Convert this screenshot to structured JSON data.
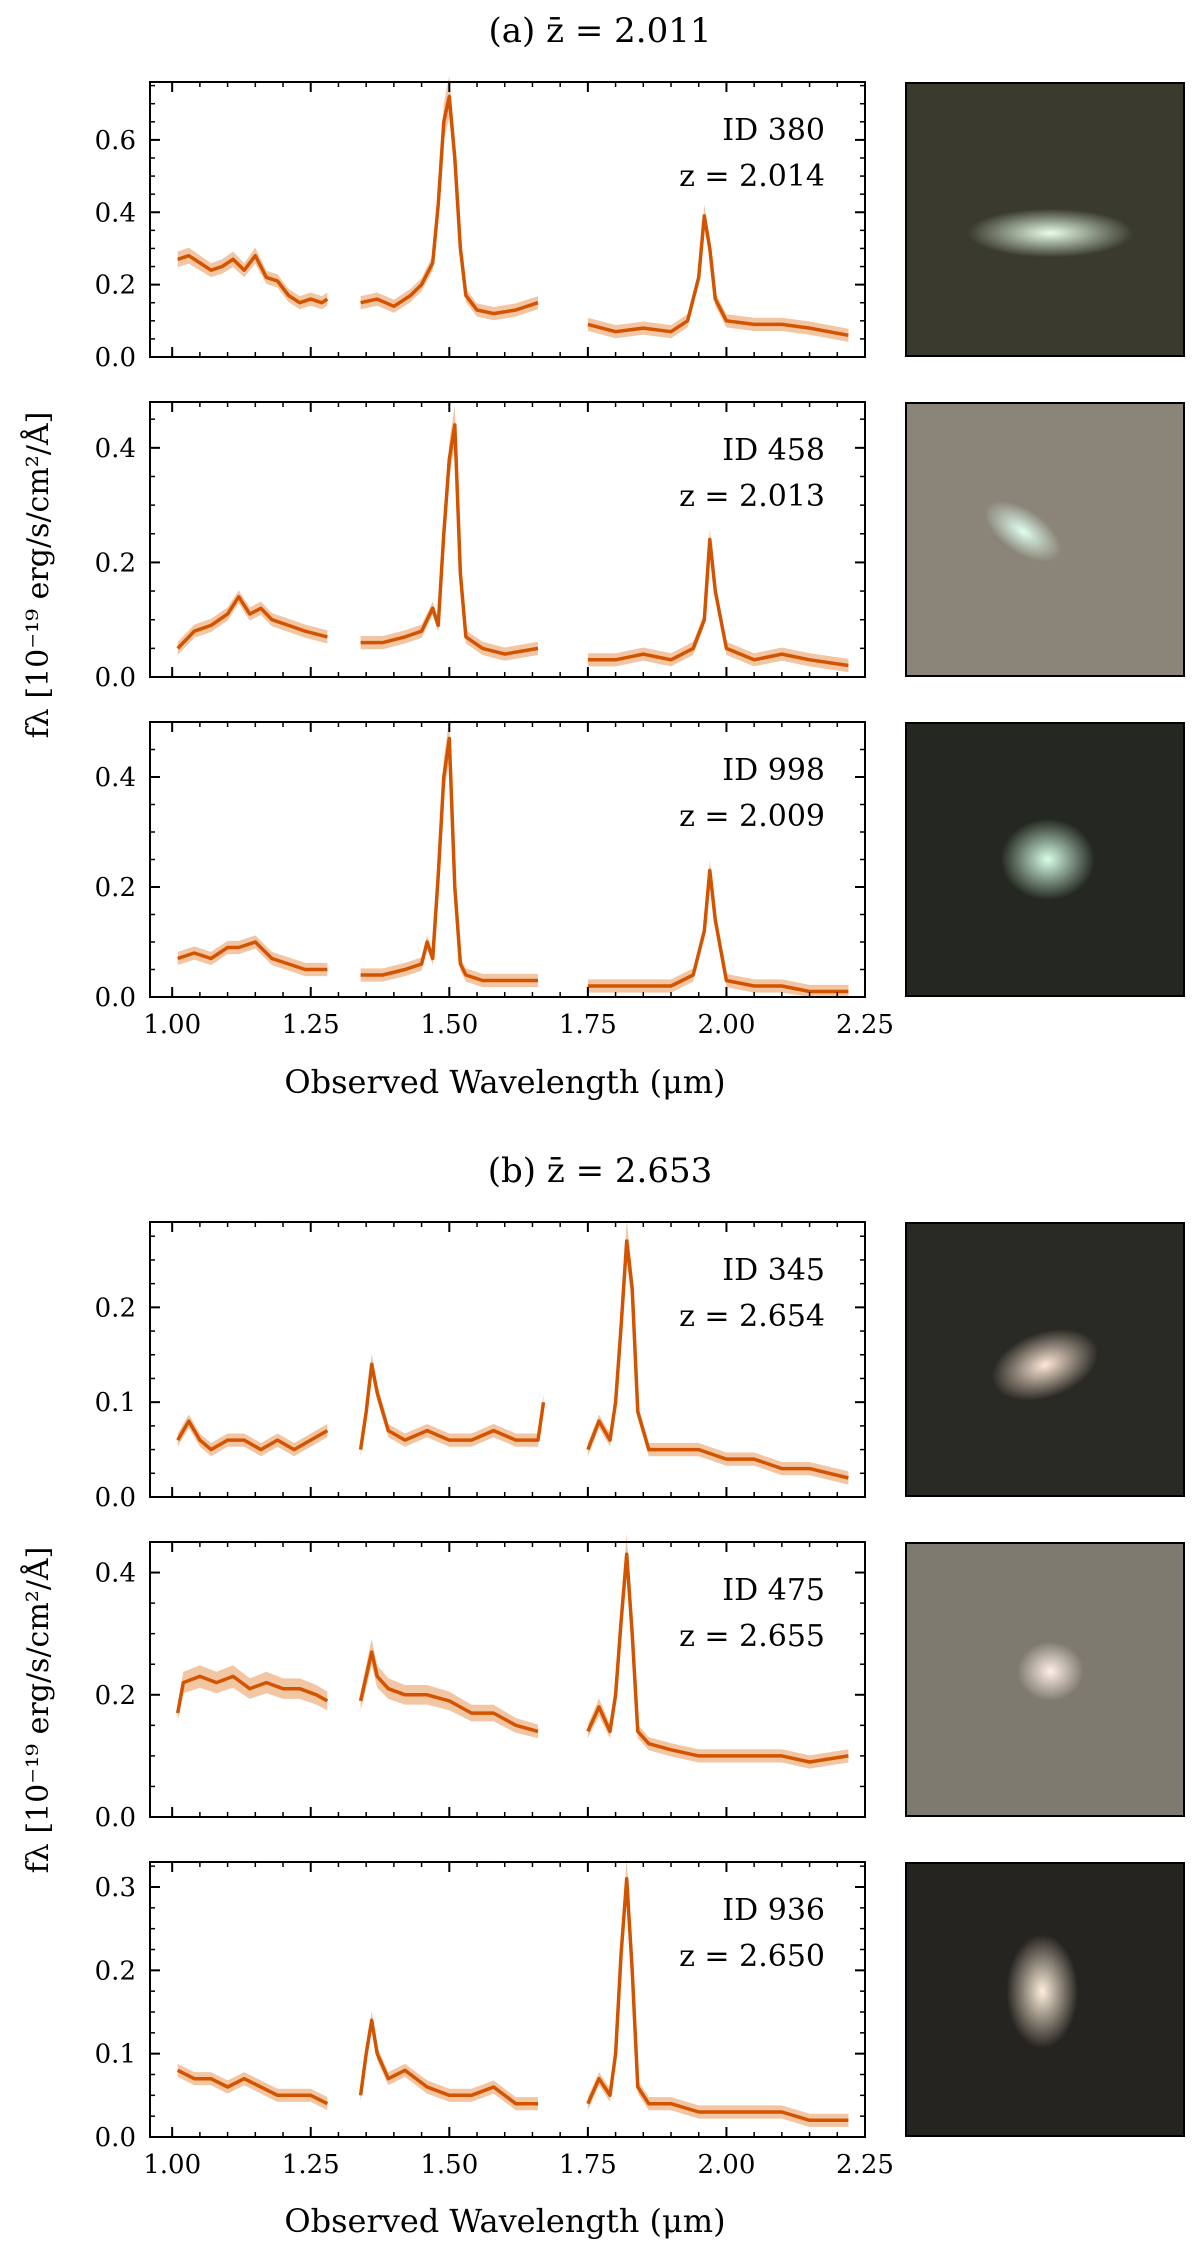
{
  "groups": [
    {
      "title": "(a)  z̄ = 2.011",
      "panel_title_prefix": "(a)",
      "zbar_label": "z̄ = 2.011",
      "objects": [
        {
          "id_label": "ID 380",
          "z_label": "z = 2.014",
          "thumb_bg": "#3a3a2e",
          "thumb_blob": "#e8ffe8",
          "thumb_shape": "elongated"
        },
        {
          "id_label": "ID 458",
          "z_label": "z = 2.013",
          "thumb_bg": "#8a8578",
          "thumb_blob": "#e0fff0",
          "thumb_shape": "tilted"
        },
        {
          "id_label": "ID 998",
          "z_label": "z = 2.009",
          "thumb_bg": "#242820",
          "thumb_blob": "#d8ffe8",
          "thumb_shape": "round"
        }
      ]
    },
    {
      "title": "(b)  z̄ = 2.653",
      "panel_title_prefix": "(b)",
      "zbar_label": "z̄ = 2.653",
      "objects": [
        {
          "id_label": "ID 345",
          "z_label": "z = 2.654",
          "thumb_bg": "#2a2a24",
          "thumb_blob": "#ffe8d8",
          "thumb_shape": "tilted"
        },
        {
          "id_label": "ID 475",
          "z_label": "z = 2.655",
          "thumb_bg": "#7e7a70",
          "thumb_blob": "#fff0e8",
          "thumb_shape": "round"
        },
        {
          "id_label": "ID 936",
          "z_label": "z = 2.650",
          "thumb_bg": "#262420",
          "thumb_blob": "#fff0dc",
          "thumb_shape": "vertical"
        }
      ]
    }
  ],
  "chart_data": [
    {
      "type": "line",
      "title": "(a)  z̄ = 2.011",
      "object": "ID 380 z = 2.014",
      "xlabel": "",
      "ylabel": "fλ [10⁻¹⁹ erg/s/cm²/Å]",
      "xlim": [
        0.96,
        2.25
      ],
      "ylim": [
        0.0,
        0.76
      ],
      "xticks": [
        1.0,
        1.25,
        1.5,
        1.75,
        2.0,
        2.25
      ],
      "yticks": [
        0.0,
        0.2,
        0.4,
        0.6
      ],
      "ytick_labels": [
        "0.0",
        "0.2",
        "0.4",
        "0.6"
      ],
      "line_color": "#d35400",
      "band_color": "#f3c6a3",
      "segments": [
        {
          "x": [
            1.01,
            1.03,
            1.05,
            1.07,
            1.09,
            1.11,
            1.13,
            1.15,
            1.17,
            1.19,
            1.21,
            1.23,
            1.25,
            1.27,
            1.28
          ],
          "y": [
            0.27,
            0.28,
            0.26,
            0.24,
            0.25,
            0.27,
            0.24,
            0.28,
            0.22,
            0.21,
            0.17,
            0.15,
            0.16,
            0.15,
            0.16
          ]
        },
        {
          "x": [
            1.34,
            1.37,
            1.4,
            1.43,
            1.45,
            1.47,
            1.48,
            1.49,
            1.5,
            1.51,
            1.52,
            1.53,
            1.55,
            1.58,
            1.62,
            1.66
          ],
          "y": [
            0.15,
            0.16,
            0.14,
            0.17,
            0.2,
            0.26,
            0.42,
            0.65,
            0.72,
            0.55,
            0.3,
            0.17,
            0.13,
            0.12,
            0.13,
            0.15
          ]
        },
        {
          "x": [
            1.75,
            1.8,
            1.85,
            1.9,
            1.93,
            1.95,
            1.96,
            1.97,
            1.98,
            2.0,
            2.05,
            2.1,
            2.15,
            2.22
          ],
          "y": [
            0.09,
            0.07,
            0.08,
            0.07,
            0.1,
            0.22,
            0.39,
            0.3,
            0.16,
            0.1,
            0.09,
            0.09,
            0.08,
            0.06
          ]
        }
      ]
    },
    {
      "type": "line",
      "title": "(a)  z̄ = 2.011",
      "object": "ID 458 z = 2.013",
      "xlabel": "",
      "ylabel": "fλ [10⁻¹⁹ erg/s/cm²/Å]",
      "xlim": [
        0.96,
        2.25
      ],
      "ylim": [
        0.0,
        0.48
      ],
      "xticks": [
        1.0,
        1.25,
        1.5,
        1.75,
        2.0,
        2.25
      ],
      "yticks": [
        0.0,
        0.2,
        0.4
      ],
      "ytick_labels": [
        "0.0",
        "0.2",
        "0.4"
      ],
      "line_color": "#d35400",
      "band_color": "#f3c6a3",
      "segments": [
        {
          "x": [
            1.01,
            1.04,
            1.07,
            1.1,
            1.12,
            1.14,
            1.16,
            1.18,
            1.21,
            1.24,
            1.28
          ],
          "y": [
            0.05,
            0.08,
            0.09,
            0.11,
            0.14,
            0.11,
            0.12,
            0.1,
            0.09,
            0.08,
            0.07
          ]
        },
        {
          "x": [
            1.34,
            1.38,
            1.42,
            1.45,
            1.47,
            1.48,
            1.49,
            1.5,
            1.51,
            1.52,
            1.53,
            1.56,
            1.6,
            1.66
          ],
          "y": [
            0.06,
            0.06,
            0.07,
            0.08,
            0.12,
            0.09,
            0.25,
            0.38,
            0.44,
            0.18,
            0.07,
            0.05,
            0.04,
            0.05
          ]
        },
        {
          "x": [
            1.75,
            1.8,
            1.85,
            1.9,
            1.94,
            1.96,
            1.97,
            1.98,
            2.0,
            2.05,
            2.1,
            2.15,
            2.22
          ],
          "y": [
            0.03,
            0.03,
            0.04,
            0.03,
            0.05,
            0.1,
            0.24,
            0.15,
            0.05,
            0.03,
            0.04,
            0.03,
            0.02
          ]
        }
      ]
    },
    {
      "type": "line",
      "title": "(a)  z̄ = 2.011",
      "object": "ID 998 z = 2.009",
      "xlabel": "Observed Wavelength (μm)",
      "ylabel": "fλ [10⁻¹⁹ erg/s/cm²/Å]",
      "xlim": [
        0.96,
        2.25
      ],
      "ylim": [
        0.0,
        0.5
      ],
      "xticks": [
        1.0,
        1.25,
        1.5,
        1.75,
        2.0,
        2.25
      ],
      "yticks": [
        0.0,
        0.2,
        0.4
      ],
      "ytick_labels": [
        "0.0",
        "0.2",
        "0.4"
      ],
      "xtick_labels": [
        "1.00",
        "1.25",
        "1.50",
        "1.75",
        "2.00",
        "2.25"
      ],
      "line_color": "#d35400",
      "band_color": "#f3c6a3",
      "segments": [
        {
          "x": [
            1.01,
            1.04,
            1.07,
            1.1,
            1.12,
            1.15,
            1.18,
            1.21,
            1.24,
            1.28
          ],
          "y": [
            0.07,
            0.08,
            0.07,
            0.09,
            0.09,
            0.1,
            0.07,
            0.06,
            0.05,
            0.05
          ]
        },
        {
          "x": [
            1.34,
            1.38,
            1.42,
            1.45,
            1.46,
            1.47,
            1.48,
            1.49,
            1.5,
            1.51,
            1.52,
            1.53,
            1.56,
            1.6,
            1.66
          ],
          "y": [
            0.04,
            0.04,
            0.05,
            0.06,
            0.1,
            0.07,
            0.22,
            0.4,
            0.47,
            0.2,
            0.06,
            0.04,
            0.03,
            0.03,
            0.03
          ]
        },
        {
          "x": [
            1.75,
            1.8,
            1.85,
            1.9,
            1.94,
            1.96,
            1.97,
            1.98,
            2.0,
            2.05,
            2.1,
            2.15,
            2.22
          ],
          "y": [
            0.02,
            0.02,
            0.02,
            0.02,
            0.04,
            0.12,
            0.23,
            0.14,
            0.03,
            0.02,
            0.02,
            0.01,
            0.01
          ]
        }
      ]
    },
    {
      "type": "line",
      "title": "(b)  z̄ = 2.653",
      "object": "ID 345 z = 2.654",
      "xlabel": "",
      "ylabel": "fλ [10⁻¹⁹ erg/s/cm²/Å]",
      "xlim": [
        0.96,
        2.25
      ],
      "ylim": [
        0.0,
        0.29
      ],
      "xticks": [
        1.0,
        1.25,
        1.5,
        1.75,
        2.0,
        2.25
      ],
      "yticks": [
        0.0,
        0.1,
        0.2
      ],
      "ytick_labels": [
        "0.0",
        "0.1",
        "0.2"
      ],
      "line_color": "#d35400",
      "band_color": "#f3c6a3",
      "segments": [
        {
          "x": [
            1.01,
            1.03,
            1.05,
            1.07,
            1.1,
            1.13,
            1.16,
            1.19,
            1.22,
            1.25,
            1.28
          ],
          "y": [
            0.06,
            0.08,
            0.06,
            0.05,
            0.06,
            0.06,
            0.05,
            0.06,
            0.05,
            0.06,
            0.07
          ]
        },
        {
          "x": [
            1.34,
            1.35,
            1.36,
            1.37,
            1.39,
            1.42,
            1.46,
            1.5,
            1.54,
            1.58,
            1.62,
            1.66,
            1.67
          ],
          "y": [
            0.05,
            0.09,
            0.14,
            0.11,
            0.07,
            0.06,
            0.07,
            0.06,
            0.06,
            0.07,
            0.06,
            0.06,
            0.1
          ]
        },
        {
          "x": [
            1.75,
            1.77,
            1.79,
            1.8,
            1.81,
            1.82,
            1.83,
            1.84,
            1.86,
            1.9,
            1.95,
            2.0,
            2.05,
            2.1,
            2.15,
            2.22
          ],
          "y": [
            0.05,
            0.08,
            0.06,
            0.1,
            0.18,
            0.27,
            0.22,
            0.09,
            0.05,
            0.05,
            0.05,
            0.04,
            0.04,
            0.03,
            0.03,
            0.02
          ]
        }
      ]
    },
    {
      "type": "line",
      "title": "(b)  z̄ = 2.653",
      "object": "ID 475 z = 2.655",
      "xlabel": "",
      "ylabel": "fλ [10⁻¹⁹ erg/s/cm²/Å]",
      "xlim": [
        0.96,
        2.25
      ],
      "ylim": [
        0.0,
        0.45
      ],
      "xticks": [
        1.0,
        1.25,
        1.5,
        1.75,
        2.0,
        2.25
      ],
      "yticks": [
        0.0,
        0.2,
        0.4
      ],
      "ytick_labels": [
        "0.0",
        "0.2",
        "0.4"
      ],
      "line_color": "#d35400",
      "band_color": "#f3c6a3",
      "segments": [
        {
          "x": [
            1.01,
            1.02,
            1.05,
            1.08,
            1.11,
            1.14,
            1.17,
            1.2,
            1.23,
            1.26,
            1.28
          ],
          "y": [
            0.17,
            0.22,
            0.23,
            0.22,
            0.23,
            0.21,
            0.22,
            0.21,
            0.21,
            0.2,
            0.19
          ]
        },
        {
          "x": [
            1.34,
            1.35,
            1.36,
            1.37,
            1.39,
            1.42,
            1.46,
            1.5,
            1.54,
            1.58,
            1.62,
            1.66
          ],
          "y": [
            0.19,
            0.23,
            0.27,
            0.23,
            0.21,
            0.2,
            0.2,
            0.19,
            0.17,
            0.17,
            0.15,
            0.14
          ]
        },
        {
          "x": [
            1.75,
            1.77,
            1.79,
            1.8,
            1.81,
            1.82,
            1.83,
            1.84,
            1.86,
            1.9,
            1.95,
            2.0,
            2.05,
            2.1,
            2.15,
            2.22
          ],
          "y": [
            0.14,
            0.18,
            0.14,
            0.2,
            0.32,
            0.43,
            0.3,
            0.14,
            0.12,
            0.11,
            0.1,
            0.1,
            0.1,
            0.1,
            0.09,
            0.1
          ]
        }
      ]
    },
    {
      "type": "line",
      "title": "(b)  z̄ = 2.653",
      "object": "ID 936 z = 2.650",
      "xlabel": "Observed Wavelength (μm)",
      "ylabel": "fλ [10⁻¹⁹ erg/s/cm²/Å]",
      "xlim": [
        0.96,
        2.25
      ],
      "ylim": [
        0.0,
        0.33
      ],
      "xticks": [
        1.0,
        1.25,
        1.5,
        1.75,
        2.0,
        2.25
      ],
      "yticks": [
        0.0,
        0.1,
        0.2,
        0.3
      ],
      "ytick_labels": [
        "0.0",
        "0.1",
        "0.2",
        "0.3"
      ],
      "xtick_labels": [
        "1.00",
        "1.25",
        "1.50",
        "1.75",
        "2.00",
        "2.25"
      ],
      "line_color": "#d35400",
      "band_color": "#f3c6a3",
      "segments": [
        {
          "x": [
            1.01,
            1.04,
            1.07,
            1.1,
            1.13,
            1.16,
            1.19,
            1.22,
            1.25,
            1.28
          ],
          "y": [
            0.08,
            0.07,
            0.07,
            0.06,
            0.07,
            0.06,
            0.05,
            0.05,
            0.05,
            0.04
          ]
        },
        {
          "x": [
            1.34,
            1.35,
            1.36,
            1.37,
            1.39,
            1.42,
            1.46,
            1.5,
            1.54,
            1.58,
            1.62,
            1.66
          ],
          "y": [
            0.05,
            0.1,
            0.14,
            0.1,
            0.07,
            0.08,
            0.06,
            0.05,
            0.05,
            0.06,
            0.04,
            0.04
          ]
        },
        {
          "x": [
            1.75,
            1.77,
            1.78,
            1.79,
            1.8,
            1.81,
            1.82,
            1.83,
            1.84,
            1.86,
            1.9,
            1.95,
            2.0,
            2.05,
            2.1,
            2.15,
            2.22
          ],
          "y": [
            0.04,
            0.07,
            0.06,
            0.05,
            0.1,
            0.22,
            0.31,
            0.2,
            0.06,
            0.04,
            0.04,
            0.03,
            0.03,
            0.03,
            0.03,
            0.02,
            0.02
          ]
        }
      ]
    }
  ]
}
